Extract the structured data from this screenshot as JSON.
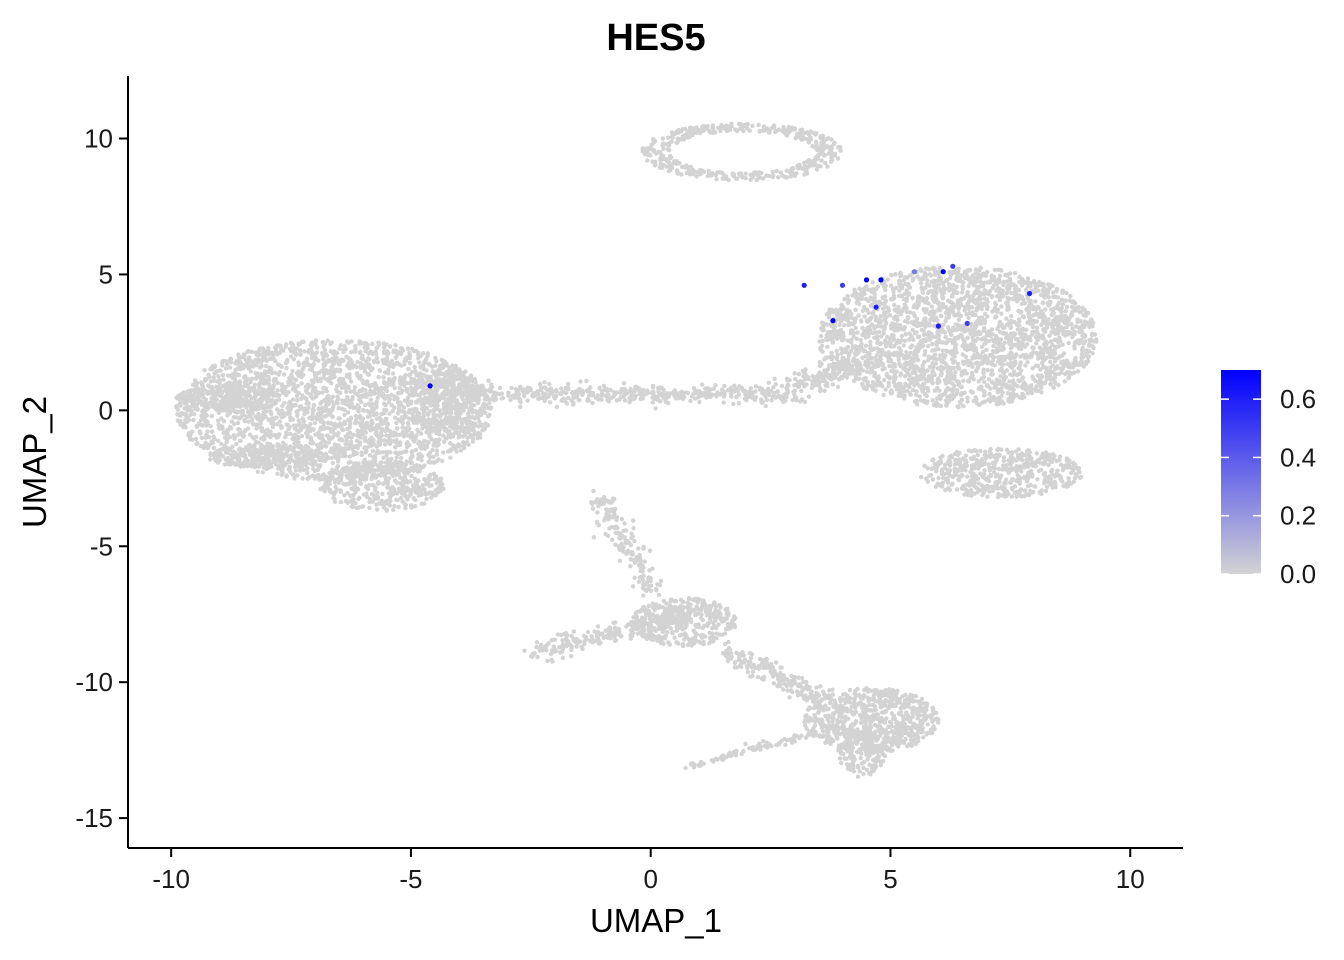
{
  "chart_data": {
    "type": "scatter",
    "title": "HES5",
    "xlabel": "UMAP_1",
    "ylabel": "UMAP_2",
    "xlim": [
      -10.9,
      11.1
    ],
    "ylim": [
      -16.1,
      12.3
    ],
    "xticks": [
      -10,
      -5,
      0,
      5,
      10
    ],
    "xtick_labels": [
      "-10",
      "-5",
      "0",
      "5",
      "10"
    ],
    "yticks": [
      -15,
      -10,
      -5,
      0,
      5,
      10
    ],
    "ytick_labels": [
      "-15",
      "-10",
      "-5",
      "0",
      "5",
      "10"
    ],
    "grid": false,
    "point_color_low": "#d3d3d3",
    "point_color_high": "#0000ff",
    "legend": {
      "placement": "right",
      "min": 0.0,
      "max": 0.7,
      "ticks": [
        0.0,
        0.2,
        0.4,
        0.6
      ],
      "tick_labels": [
        "0.0",
        "0.2",
        "0.4",
        "0.6"
      ]
    },
    "clusters": [
      {
        "kind": "ellipse",
        "cx": -6.6,
        "cy": 0.0,
        "rx": 3.3,
        "ry": 2.6,
        "n": 2600
      },
      {
        "kind": "ellipse",
        "cx": -8.8,
        "cy": 0.4,
        "rx": 1.1,
        "ry": 0.5,
        "n": 250
      },
      {
        "kind": "ellipse",
        "cx": -5.6,
        "cy": -2.8,
        "rx": 1.3,
        "ry": 0.9,
        "n": 350
      },
      {
        "kind": "ellipse",
        "cx": -8.0,
        "cy": -1.7,
        "rx": 1.3,
        "ry": 0.4,
        "n": 200
      },
      {
        "kind": "ellipse",
        "cx": -4.2,
        "cy": 0.3,
        "rx": 0.8,
        "ry": 1.2,
        "n": 300
      },
      {
        "kind": "band",
        "x0": -3.5,
        "y0": 0.6,
        "x1": 3.0,
        "y1": 0.6,
        "w": 0.35,
        "n": 450
      },
      {
        "kind": "band",
        "x0": 3.0,
        "y0": 0.9,
        "x1": 4.5,
        "y1": 1.8,
        "w": 0.4,
        "n": 150
      },
      {
        "kind": "ellipse",
        "cx": 6.4,
        "cy": 2.7,
        "rx": 2.9,
        "ry": 2.6,
        "n": 2400
      },
      {
        "kind": "ellipse",
        "cx": 7.3,
        "cy": -2.3,
        "rx": 1.7,
        "ry": 0.9,
        "n": 500
      },
      {
        "kind": "ring",
        "cx": 1.9,
        "cy": 9.5,
        "rx": 2.1,
        "ry": 1.05,
        "n": 420
      },
      {
        "kind": "ellipse",
        "cx": 0.7,
        "cy": -7.8,
        "rx": 1.1,
        "ry": 0.9,
        "n": 380
      },
      {
        "kind": "band",
        "x0": 0.8,
        "y0": -7.5,
        "x1": -2.4,
        "y1": -8.9,
        "w": 0.35,
        "n": 220
      },
      {
        "kind": "band",
        "x0": -1.1,
        "y0": -3.1,
        "x1": 0.1,
        "y1": -6.8,
        "w": 0.3,
        "n": 160
      },
      {
        "kind": "band",
        "x0": 1.5,
        "y0": -8.8,
        "x1": 3.8,
        "y1": -10.8,
        "w": 0.35,
        "n": 200
      },
      {
        "kind": "ellipse",
        "cx": 4.6,
        "cy": -11.4,
        "rx": 1.4,
        "ry": 1.2,
        "n": 700
      },
      {
        "kind": "ellipse",
        "cx": 4.4,
        "cy": -12.6,
        "rx": 0.5,
        "ry": 0.9,
        "n": 150
      },
      {
        "kind": "band",
        "x0": 0.8,
        "y0": -13.1,
        "x1": 3.3,
        "y1": -11.9,
        "w": 0.12,
        "n": 90
      }
    ],
    "expressing_points": [
      {
        "x": 3.2,
        "y": 4.6,
        "value": 0.6
      },
      {
        "x": 4.0,
        "y": 4.6,
        "value": 0.5
      },
      {
        "x": 4.5,
        "y": 4.8,
        "value": 0.7
      },
      {
        "x": 4.8,
        "y": 4.8,
        "value": 0.7
      },
      {
        "x": 6.1,
        "y": 5.1,
        "value": 0.7
      },
      {
        "x": 6.3,
        "y": 5.3,
        "value": 0.5
      },
      {
        "x": 5.5,
        "y": 5.1,
        "value": 0.3
      },
      {
        "x": 4.7,
        "y": 3.8,
        "value": 0.6
      },
      {
        "x": 3.8,
        "y": 3.3,
        "value": 0.7
      },
      {
        "x": 6.0,
        "y": 3.1,
        "value": 0.6
      },
      {
        "x": 6.6,
        "y": 3.2,
        "value": 0.5
      },
      {
        "x": 7.9,
        "y": 4.3,
        "value": 0.6
      },
      {
        "x": -4.6,
        "y": 0.9,
        "value": 0.7
      }
    ]
  }
}
